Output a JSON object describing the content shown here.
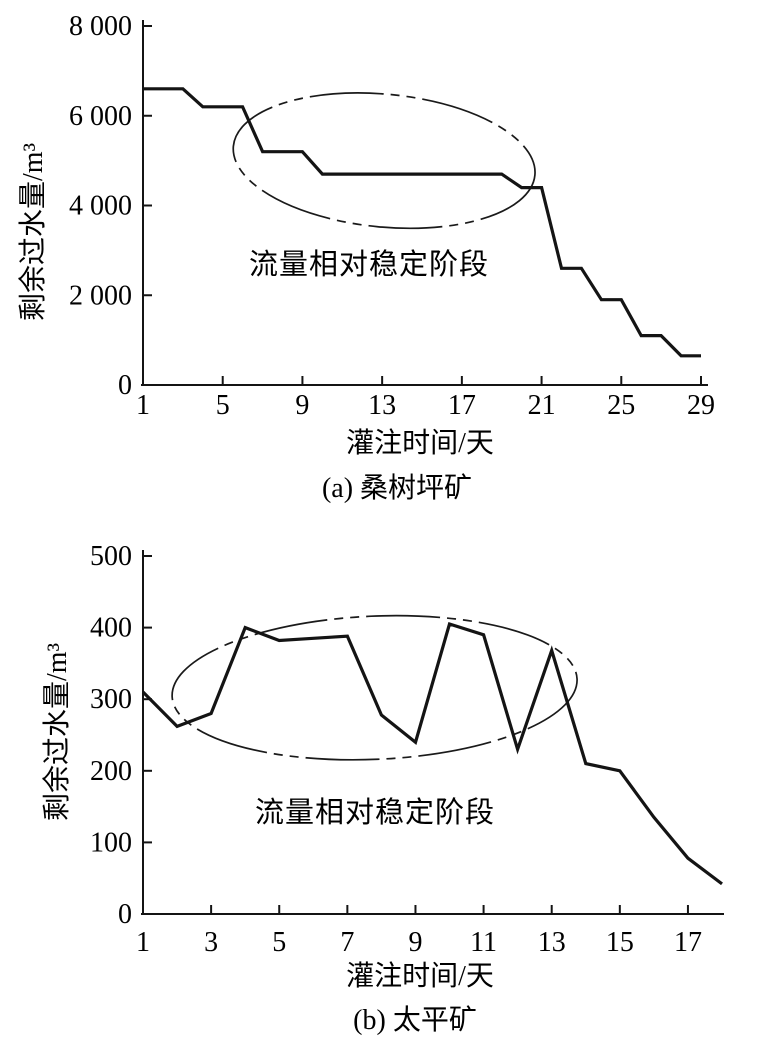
{
  "figure": {
    "background_color": "#ffffff",
    "line_color": "#141414",
    "text_color": "#000000"
  },
  "chart_data": [
    {
      "type": "line",
      "panel_label": "(a) 桑树坪矿",
      "xlabel": "灌注时间/天",
      "ylabel": "剩余过水量/m³",
      "xlim": [
        1,
        29
      ],
      "ylim": [
        0,
        8000
      ],
      "xticks": [
        1,
        5,
        9,
        13,
        17,
        21,
        25,
        29
      ],
      "yticks": [
        0,
        2000,
        4000,
        6000,
        8000
      ],
      "ytick_labels": [
        "0",
        "2 000",
        "4 000",
        "6 000",
        "8 000"
      ],
      "grid": false,
      "legend": false,
      "x": [
        1,
        2,
        3,
        4,
        5,
        6,
        7,
        8,
        9,
        10,
        11,
        12,
        13,
        14,
        15,
        16,
        17,
        18,
        19,
        20,
        21,
        22,
        23,
        24,
        25,
        26,
        27,
        28,
        29
      ],
      "y": [
        6600,
        6600,
        6600,
        6200,
        6200,
        6200,
        5200,
        5200,
        5200,
        4700,
        4700,
        4700,
        4700,
        4700,
        4700,
        4700,
        4700,
        4700,
        4700,
        4400,
        4400,
        2600,
        2600,
        1900,
        1900,
        1100,
        1100,
        650,
        650
      ],
      "annotation": {
        "label": "流量相对稳定阶段",
        "ellipse": {
          "cx": 13.1,
          "cy": 5000,
          "rx": 7.6,
          "ry": 1480,
          "rotate_deg": 5.5
        }
      }
    },
    {
      "type": "line",
      "panel_label": "(b) 太平矿",
      "xlabel": "灌注时间/天",
      "ylabel": "剩余过水量/m³",
      "xlim": [
        1,
        18
      ],
      "ylim": [
        0,
        500
      ],
      "xticks": [
        1,
        3,
        5,
        7,
        9,
        11,
        13,
        15,
        17
      ],
      "yticks": [
        0,
        100,
        200,
        300,
        400,
        500
      ],
      "ytick_labels": [
        "0",
        "100",
        "200",
        "300",
        "400",
        "500"
      ],
      "grid": false,
      "legend": false,
      "x": [
        1,
        2,
        3,
        4,
        5,
        6,
        7,
        8,
        9,
        10,
        11,
        12,
        13,
        14,
        15,
        16,
        17,
        18
      ],
      "y": [
        310,
        262,
        280,
        400,
        382,
        385,
        388,
        278,
        240,
        405,
        390,
        230,
        368,
        210,
        200,
        135,
        78,
        42
      ],
      "annotation": {
        "label": "流量相对稳定阶段",
        "ellipse": {
          "cx": 7.8,
          "cy": 316,
          "rx": 5.95,
          "ry": 100,
          "rotate_deg": -2.5
        }
      }
    }
  ]
}
